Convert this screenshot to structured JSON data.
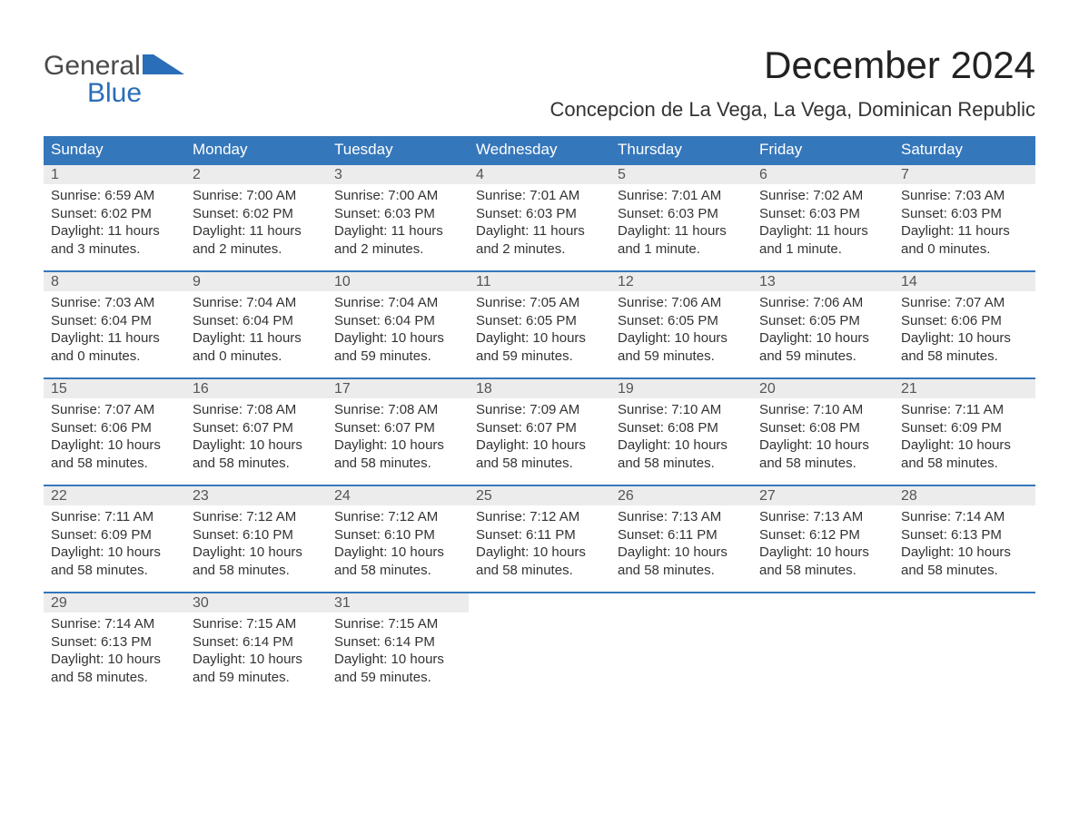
{
  "brand": {
    "word1": "General",
    "word2": "Blue",
    "mark_color": "#2a6db8",
    "text_gray": "#4a4a4a"
  },
  "title": "December 2024",
  "location": "Concepcion de La Vega, La Vega, Dominican Republic",
  "colors": {
    "header_bg": "#3577bb",
    "header_text": "#ffffff",
    "daynum_bg": "#ececec",
    "rule": "#3577bb",
    "body_text": "#333333"
  },
  "day_headers": [
    "Sunday",
    "Monday",
    "Tuesday",
    "Wednesday",
    "Thursday",
    "Friday",
    "Saturday"
  ],
  "weeks": [
    [
      {
        "n": "1",
        "sr": "Sunrise: 6:59 AM",
        "ss": "Sunset: 6:02 PM",
        "d1": "Daylight: 11 hours",
        "d2": "and 3 minutes."
      },
      {
        "n": "2",
        "sr": "Sunrise: 7:00 AM",
        "ss": "Sunset: 6:02 PM",
        "d1": "Daylight: 11 hours",
        "d2": "and 2 minutes."
      },
      {
        "n": "3",
        "sr": "Sunrise: 7:00 AM",
        "ss": "Sunset: 6:03 PM",
        "d1": "Daylight: 11 hours",
        "d2": "and 2 minutes."
      },
      {
        "n": "4",
        "sr": "Sunrise: 7:01 AM",
        "ss": "Sunset: 6:03 PM",
        "d1": "Daylight: 11 hours",
        "d2": "and 2 minutes."
      },
      {
        "n": "5",
        "sr": "Sunrise: 7:01 AM",
        "ss": "Sunset: 6:03 PM",
        "d1": "Daylight: 11 hours",
        "d2": "and 1 minute."
      },
      {
        "n": "6",
        "sr": "Sunrise: 7:02 AM",
        "ss": "Sunset: 6:03 PM",
        "d1": "Daylight: 11 hours",
        "d2": "and 1 minute."
      },
      {
        "n": "7",
        "sr": "Sunrise: 7:03 AM",
        "ss": "Sunset: 6:03 PM",
        "d1": "Daylight: 11 hours",
        "d2": "and 0 minutes."
      }
    ],
    [
      {
        "n": "8",
        "sr": "Sunrise: 7:03 AM",
        "ss": "Sunset: 6:04 PM",
        "d1": "Daylight: 11 hours",
        "d2": "and 0 minutes."
      },
      {
        "n": "9",
        "sr": "Sunrise: 7:04 AM",
        "ss": "Sunset: 6:04 PM",
        "d1": "Daylight: 11 hours",
        "d2": "and 0 minutes."
      },
      {
        "n": "10",
        "sr": "Sunrise: 7:04 AM",
        "ss": "Sunset: 6:04 PM",
        "d1": "Daylight: 10 hours",
        "d2": "and 59 minutes."
      },
      {
        "n": "11",
        "sr": "Sunrise: 7:05 AM",
        "ss": "Sunset: 6:05 PM",
        "d1": "Daylight: 10 hours",
        "d2": "and 59 minutes."
      },
      {
        "n": "12",
        "sr": "Sunrise: 7:06 AM",
        "ss": "Sunset: 6:05 PM",
        "d1": "Daylight: 10 hours",
        "d2": "and 59 minutes."
      },
      {
        "n": "13",
        "sr": "Sunrise: 7:06 AM",
        "ss": "Sunset: 6:05 PM",
        "d1": "Daylight: 10 hours",
        "d2": "and 59 minutes."
      },
      {
        "n": "14",
        "sr": "Sunrise: 7:07 AM",
        "ss": "Sunset: 6:06 PM",
        "d1": "Daylight: 10 hours",
        "d2": "and 58 minutes."
      }
    ],
    [
      {
        "n": "15",
        "sr": "Sunrise: 7:07 AM",
        "ss": "Sunset: 6:06 PM",
        "d1": "Daylight: 10 hours",
        "d2": "and 58 minutes."
      },
      {
        "n": "16",
        "sr": "Sunrise: 7:08 AM",
        "ss": "Sunset: 6:07 PM",
        "d1": "Daylight: 10 hours",
        "d2": "and 58 minutes."
      },
      {
        "n": "17",
        "sr": "Sunrise: 7:08 AM",
        "ss": "Sunset: 6:07 PM",
        "d1": "Daylight: 10 hours",
        "d2": "and 58 minutes."
      },
      {
        "n": "18",
        "sr": "Sunrise: 7:09 AM",
        "ss": "Sunset: 6:07 PM",
        "d1": "Daylight: 10 hours",
        "d2": "and 58 minutes."
      },
      {
        "n": "19",
        "sr": "Sunrise: 7:10 AM",
        "ss": "Sunset: 6:08 PM",
        "d1": "Daylight: 10 hours",
        "d2": "and 58 minutes."
      },
      {
        "n": "20",
        "sr": "Sunrise: 7:10 AM",
        "ss": "Sunset: 6:08 PM",
        "d1": "Daylight: 10 hours",
        "d2": "and 58 minutes."
      },
      {
        "n": "21",
        "sr": "Sunrise: 7:11 AM",
        "ss": "Sunset: 6:09 PM",
        "d1": "Daylight: 10 hours",
        "d2": "and 58 minutes."
      }
    ],
    [
      {
        "n": "22",
        "sr": "Sunrise: 7:11 AM",
        "ss": "Sunset: 6:09 PM",
        "d1": "Daylight: 10 hours",
        "d2": "and 58 minutes."
      },
      {
        "n": "23",
        "sr": "Sunrise: 7:12 AM",
        "ss": "Sunset: 6:10 PM",
        "d1": "Daylight: 10 hours",
        "d2": "and 58 minutes."
      },
      {
        "n": "24",
        "sr": "Sunrise: 7:12 AM",
        "ss": "Sunset: 6:10 PM",
        "d1": "Daylight: 10 hours",
        "d2": "and 58 minutes."
      },
      {
        "n": "25",
        "sr": "Sunrise: 7:12 AM",
        "ss": "Sunset: 6:11 PM",
        "d1": "Daylight: 10 hours",
        "d2": "and 58 minutes."
      },
      {
        "n": "26",
        "sr": "Sunrise: 7:13 AM",
        "ss": "Sunset: 6:11 PM",
        "d1": "Daylight: 10 hours",
        "d2": "and 58 minutes."
      },
      {
        "n": "27",
        "sr": "Sunrise: 7:13 AM",
        "ss": "Sunset: 6:12 PM",
        "d1": "Daylight: 10 hours",
        "d2": "and 58 minutes."
      },
      {
        "n": "28",
        "sr": "Sunrise: 7:14 AM",
        "ss": "Sunset: 6:13 PM",
        "d1": "Daylight: 10 hours",
        "d2": "and 58 minutes."
      }
    ],
    [
      {
        "n": "29",
        "sr": "Sunrise: 7:14 AM",
        "ss": "Sunset: 6:13 PM",
        "d1": "Daylight: 10 hours",
        "d2": "and 58 minutes."
      },
      {
        "n": "30",
        "sr": "Sunrise: 7:15 AM",
        "ss": "Sunset: 6:14 PM",
        "d1": "Daylight: 10 hours",
        "d2": "and 59 minutes."
      },
      {
        "n": "31",
        "sr": "Sunrise: 7:15 AM",
        "ss": "Sunset: 6:14 PM",
        "d1": "Daylight: 10 hours",
        "d2": "and 59 minutes."
      },
      null,
      null,
      null,
      null
    ]
  ]
}
